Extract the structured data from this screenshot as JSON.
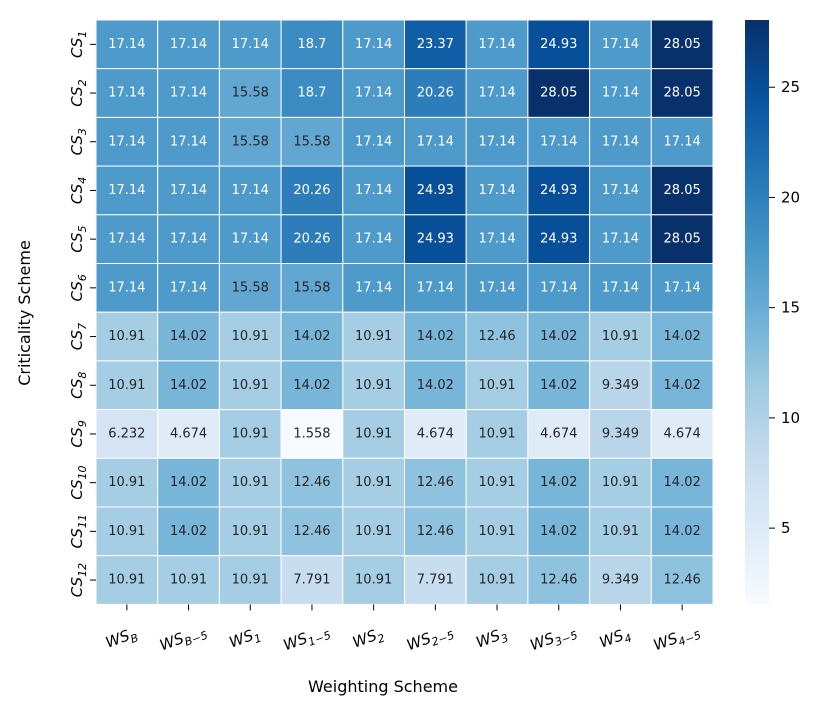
{
  "chart_data": {
    "type": "heatmap",
    "xlabel": "Weighting Scheme",
    "ylabel": "Criticality Scheme",
    "x_categories": [
      {
        "base": "WS",
        "sub": "B"
      },
      {
        "base": "WS",
        "sub": "B−5"
      },
      {
        "base": "WS",
        "sub": "1"
      },
      {
        "base": "WS",
        "sub": "1−5"
      },
      {
        "base": "WS",
        "sub": "2"
      },
      {
        "base": "WS",
        "sub": "2−5"
      },
      {
        "base": "WS",
        "sub": "3"
      },
      {
        "base": "WS",
        "sub": "3−5"
      },
      {
        "base": "WS",
        "sub": "4"
      },
      {
        "base": "WS",
        "sub": "4−5"
      }
    ],
    "y_categories": [
      {
        "base": "CS",
        "sub": "1"
      },
      {
        "base": "CS",
        "sub": "2"
      },
      {
        "base": "CS",
        "sub": "3"
      },
      {
        "base": "CS",
        "sub": "4"
      },
      {
        "base": "CS",
        "sub": "5"
      },
      {
        "base": "CS",
        "sub": "6"
      },
      {
        "base": "CS",
        "sub": "7"
      },
      {
        "base": "CS",
        "sub": "8"
      },
      {
        "base": "CS",
        "sub": "9"
      },
      {
        "base": "CS",
        "sub": "10"
      },
      {
        "base": "CS",
        "sub": "11"
      },
      {
        "base": "CS",
        "sub": "12"
      }
    ],
    "values": [
      [
        17.14,
        17.14,
        17.14,
        18.7,
        17.14,
        23.37,
        17.14,
        24.93,
        17.14,
        28.05
      ],
      [
        17.14,
        17.14,
        15.58,
        18.7,
        17.14,
        20.26,
        17.14,
        28.05,
        17.14,
        28.05
      ],
      [
        17.14,
        17.14,
        15.58,
        15.58,
        17.14,
        17.14,
        17.14,
        17.14,
        17.14,
        17.14
      ],
      [
        17.14,
        17.14,
        17.14,
        20.26,
        17.14,
        24.93,
        17.14,
        24.93,
        17.14,
        28.05
      ],
      [
        17.14,
        17.14,
        17.14,
        20.26,
        17.14,
        24.93,
        17.14,
        24.93,
        17.14,
        28.05
      ],
      [
        17.14,
        17.14,
        15.58,
        15.58,
        17.14,
        17.14,
        17.14,
        17.14,
        17.14,
        17.14
      ],
      [
        10.91,
        14.02,
        10.91,
        14.02,
        10.91,
        14.02,
        12.46,
        14.02,
        10.91,
        14.02
      ],
      [
        10.91,
        14.02,
        10.91,
        14.02,
        10.91,
        14.02,
        10.91,
        14.02,
        9.349,
        14.02
      ],
      [
        6.232,
        4.674,
        10.91,
        1.558,
        10.91,
        4.674,
        10.91,
        4.674,
        9.349,
        4.674
      ],
      [
        10.91,
        14.02,
        10.91,
        12.46,
        10.91,
        12.46,
        10.91,
        14.02,
        10.91,
        14.02
      ],
      [
        10.91,
        14.02,
        10.91,
        12.46,
        10.91,
        12.46,
        10.91,
        14.02,
        10.91,
        14.02
      ],
      [
        10.91,
        10.91,
        10.91,
        7.791,
        10.91,
        7.791,
        10.91,
        12.46,
        9.349,
        12.46
      ]
    ],
    "value_labels": [
      [
        "17.14",
        "17.14",
        "17.14",
        "18.7",
        "17.14",
        "23.37",
        "17.14",
        "24.93",
        "17.14",
        "28.05"
      ],
      [
        "17.14",
        "17.14",
        "15.58",
        "18.7",
        "17.14",
        "20.26",
        "17.14",
        "28.05",
        "17.14",
        "28.05"
      ],
      [
        "17.14",
        "17.14",
        "15.58",
        "15.58",
        "17.14",
        "17.14",
        "17.14",
        "17.14",
        "17.14",
        "17.14"
      ],
      [
        "17.14",
        "17.14",
        "17.14",
        "20.26",
        "17.14",
        "24.93",
        "17.14",
        "24.93",
        "17.14",
        "28.05"
      ],
      [
        "17.14",
        "17.14",
        "17.14",
        "20.26",
        "17.14",
        "24.93",
        "17.14",
        "24.93",
        "17.14",
        "28.05"
      ],
      [
        "17.14",
        "17.14",
        "15.58",
        "15.58",
        "17.14",
        "17.14",
        "17.14",
        "17.14",
        "17.14",
        "17.14"
      ],
      [
        "10.91",
        "14.02",
        "10.91",
        "14.02",
        "10.91",
        "14.02",
        "12.46",
        "14.02",
        "10.91",
        "14.02"
      ],
      [
        "10.91",
        "14.02",
        "10.91",
        "14.02",
        "10.91",
        "14.02",
        "10.91",
        "14.02",
        "9.349",
        "14.02"
      ],
      [
        "6.232",
        "4.674",
        "10.91",
        "1.558",
        "10.91",
        "4.674",
        "10.91",
        "4.674",
        "9.349",
        "4.674"
      ],
      [
        "10.91",
        "14.02",
        "10.91",
        "12.46",
        "10.91",
        "12.46",
        "10.91",
        "14.02",
        "10.91",
        "14.02"
      ],
      [
        "10.91",
        "14.02",
        "10.91",
        "12.46",
        "10.91",
        "12.46",
        "10.91",
        "14.02",
        "10.91",
        "14.02"
      ],
      [
        "10.91",
        "10.91",
        "10.91",
        "7.791",
        "10.91",
        "7.791",
        "10.91",
        "12.46",
        "9.349",
        "12.46"
      ]
    ],
    "colorbar": {
      "colormap": "Blues",
      "vmin": 1.558,
      "vmax": 28.05,
      "ticks": [
        5,
        10,
        15,
        20,
        25
      ],
      "tick_labels": [
        "5",
        "10",
        "15",
        "20",
        "25"
      ]
    },
    "grid": true,
    "colors": {
      "cell_border": "#ffffff",
      "text_light": "#ffffff",
      "text_dark": "#262626",
      "colormap_stops": [
        "#f7fbff",
        "#deebf7",
        "#c6dbef",
        "#9ecae1",
        "#6baed6",
        "#4292c6",
        "#2171b5",
        "#08519c",
        "#08306b"
      ]
    }
  }
}
